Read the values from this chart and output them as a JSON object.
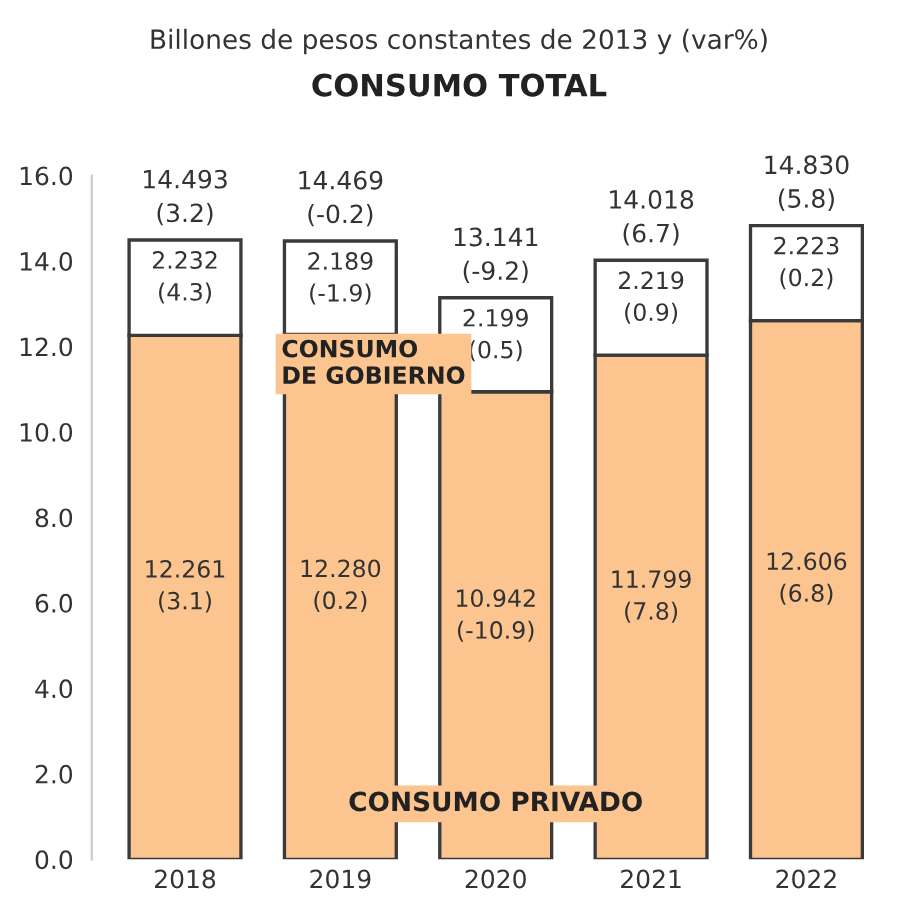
{
  "chart_data": {
    "type": "bar",
    "title": "CONSUMO TOTAL",
    "subtitle": "Billones de pesos constantes de 2013 y (var%)",
    "categories": [
      "2018",
      "2019",
      "2020",
      "2021",
      "2022"
    ],
    "stacked": true,
    "series": [
      {
        "name": "CONSUMO PRIVADO",
        "color": "#fcc48f",
        "values": [
          12.261,
          12.28,
          10.942,
          11.799,
          12.606
        ],
        "value_labels": [
          "12.261\n(3.1)",
          "12.280\n(0.2)",
          "10.942\n(-10.9)",
          "11.799\n(7.8)",
          "12.606\n(6.8)"
        ]
      },
      {
        "name": "CONSUMO\nDE GOBIERNO",
        "color": "#ffffff",
        "values": [
          2.232,
          2.189,
          2.199,
          2.219,
          2.223
        ],
        "value_labels": [
          "2.232\n(4.3)",
          "2.189\n(-1.9)",
          "2.199\n(0.5)",
          "2.219\n(0.9)",
          "2.223\n(0.2)"
        ]
      }
    ],
    "totals": [
      "14.493\n(3.2)",
      "14.469\n(-0.2)",
      "13.141\n(-9.2)",
      "14.018\n(6.7)",
      "14.830\n(5.8)"
    ],
    "ylim": [
      0,
      16
    ],
    "yticks": [
      {
        "value": 0,
        "label": "0.0"
      },
      {
        "value": 2,
        "label": "2.0"
      },
      {
        "value": 4,
        "label": "4.0"
      },
      {
        "value": 6,
        "label": "6.0"
      },
      {
        "value": 8,
        "label": "8.0"
      },
      {
        "value": 10,
        "label": "10.0"
      },
      {
        "value": 12,
        "label": "12.0"
      },
      {
        "value": 14,
        "label": "14.0"
      },
      {
        "value": 16,
        "label": "16.0"
      }
    ],
    "grid": false,
    "legend": false
  }
}
